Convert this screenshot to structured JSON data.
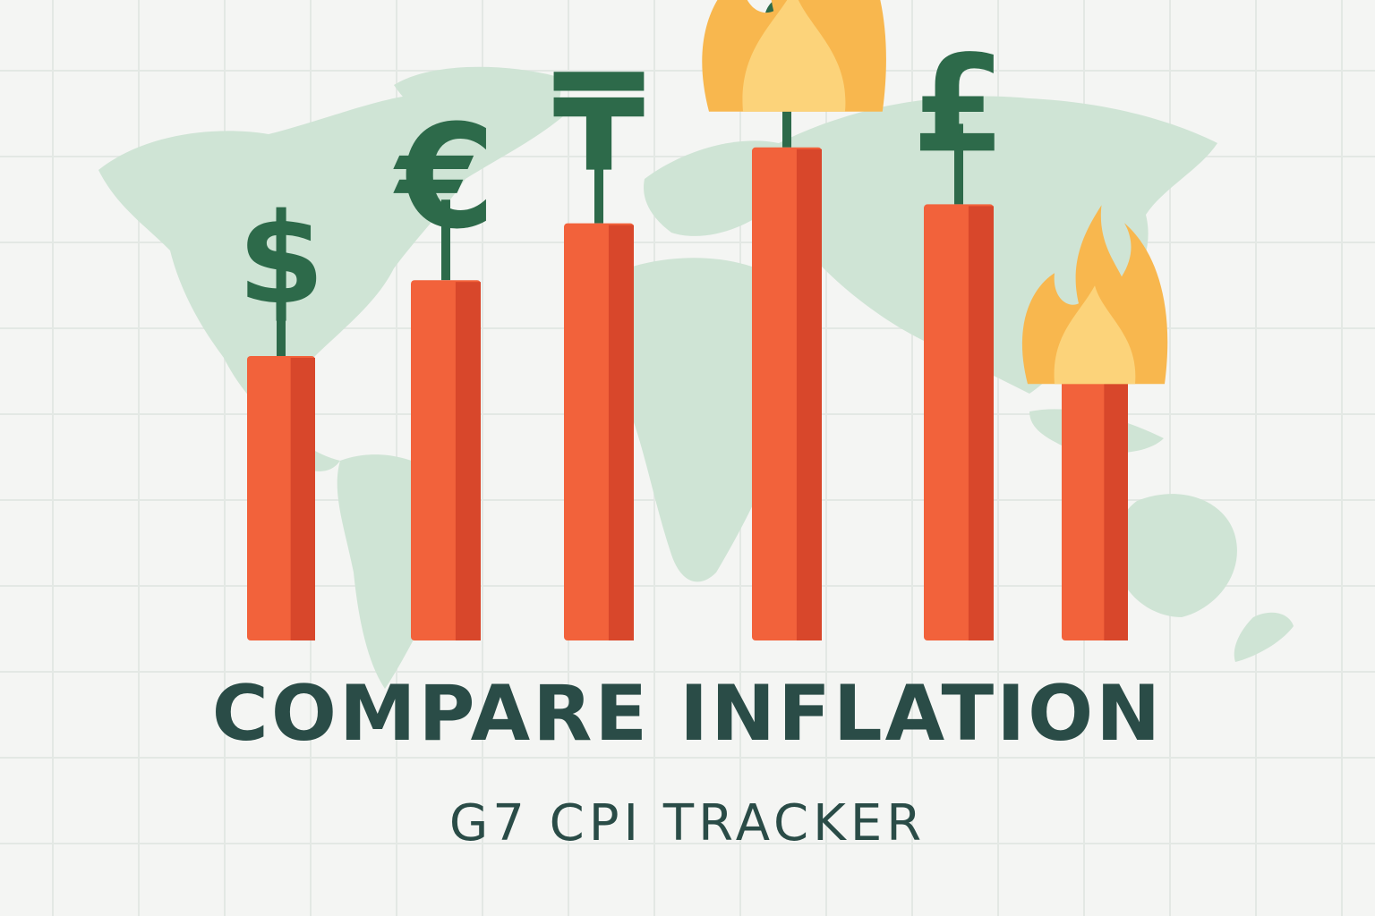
{
  "title": "COMPARE INFLATION",
  "subtitle": "G7 CPI TRACKER",
  "colors": {
    "background": "#f4f5f3",
    "grid": "#e3e8e4",
    "map": "#cfe4d5",
    "bar": "#f2623b",
    "bar_shade": "#d8472b",
    "symbol": "#2d6a4a",
    "flame_outer": "#f8b74e",
    "flame_inner": "#fcd37a",
    "text": "#2a4c47"
  },
  "bars": [
    {
      "symbol": "$",
      "symbol_icon": "dollar-icon",
      "level": 0.3,
      "flame": false
    },
    {
      "symbol": "€",
      "symbol_icon": "euro-icon",
      "level": 0.38,
      "flame": false
    },
    {
      "symbol": "₸",
      "symbol_icon": "tenge-icon",
      "level": 0.44,
      "flame": false
    },
    {
      "symbol": "£",
      "symbol_icon": "pound-icon",
      "level": 0.52,
      "flame": true
    },
    {
      "symbol": "£",
      "symbol_icon": "pound-icon",
      "level": 0.46,
      "flame": false
    },
    {
      "symbol": "",
      "symbol_icon": "",
      "level": 0.28,
      "flame": true
    }
  ]
}
